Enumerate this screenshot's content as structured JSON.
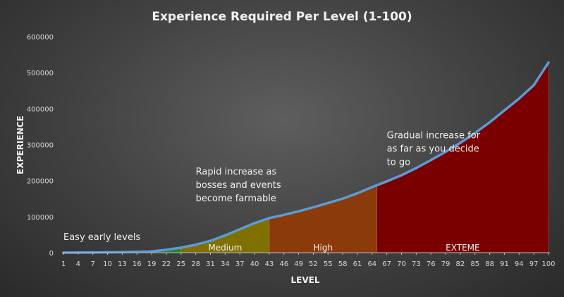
{
  "chart_data": {
    "type": "area",
    "title": "Experience Required Per Level (1-100)",
    "xlabel": "LEVEL",
    "ylabel": "EXPERIENCE",
    "ylim": [
      0,
      600000
    ],
    "yticks": [
      0,
      100000,
      200000,
      300000,
      400000,
      500000,
      600000
    ],
    "xlim": [
      1,
      100
    ],
    "xticks": [
      1,
      4,
      7,
      10,
      13,
      16,
      19,
      22,
      25,
      28,
      31,
      34,
      37,
      40,
      43,
      46,
      49,
      52,
      55,
      58,
      61,
      64,
      67,
      70,
      73,
      76,
      79,
      82,
      85,
      88,
      91,
      94,
      97,
      100
    ],
    "grid": false,
    "line_color": "#5b9bd5",
    "series": [
      {
        "values": [
          [
            1,
            0
          ],
          [
            4,
            200
          ],
          [
            7,
            500
          ],
          [
            10,
            1000
          ],
          [
            13,
            1500
          ],
          [
            16,
            2200
          ],
          [
            19,
            3500
          ],
          [
            22,
            8000
          ],
          [
            25,
            14000
          ],
          [
            28,
            22000
          ],
          [
            31,
            33000
          ],
          [
            34,
            48000
          ],
          [
            37,
            65000
          ],
          [
            40,
            82000
          ],
          [
            43,
            96000
          ],
          [
            46,
            105000
          ],
          [
            49,
            115000
          ],
          [
            52,
            126000
          ],
          [
            55,
            138000
          ],
          [
            58,
            150000
          ],
          [
            61,
            165000
          ],
          [
            64,
            182000
          ],
          [
            67,
            198000
          ],
          [
            70,
            215000
          ],
          [
            73,
            235000
          ],
          [
            76,
            257000
          ],
          [
            79,
            280000
          ],
          [
            82,
            305000
          ],
          [
            85,
            332000
          ],
          [
            88,
            362000
          ],
          [
            91,
            395000
          ],
          [
            94,
            428000
          ],
          [
            97,
            465000
          ],
          [
            100,
            528000
          ]
        ]
      }
    ],
    "regions": [
      {
        "label": "",
        "from": 1,
        "to": 25,
        "color": "#2e7d32"
      },
      {
        "label": "Medium",
        "from": 25,
        "to": 43,
        "color": "#807000"
      },
      {
        "label": "High",
        "from": 43,
        "to": 65,
        "color": "#8b3a0a"
      },
      {
        "label": "EXTEME",
        "from": 65,
        "to": 100,
        "color": "#7a0000"
      }
    ],
    "annotations": [
      {
        "lines": [
          "Easy early levels"
        ],
        "x": 1,
        "y": 0
      },
      {
        "lines": [
          "Rapid increase as",
          "bosses and events",
          "become farmable"
        ],
        "x": 28,
        "y": 100000
      },
      {
        "lines": [
          "Gradual increase for",
          "as far as you decide",
          "to go"
        ],
        "x": 67,
        "y": 200000
      }
    ]
  }
}
